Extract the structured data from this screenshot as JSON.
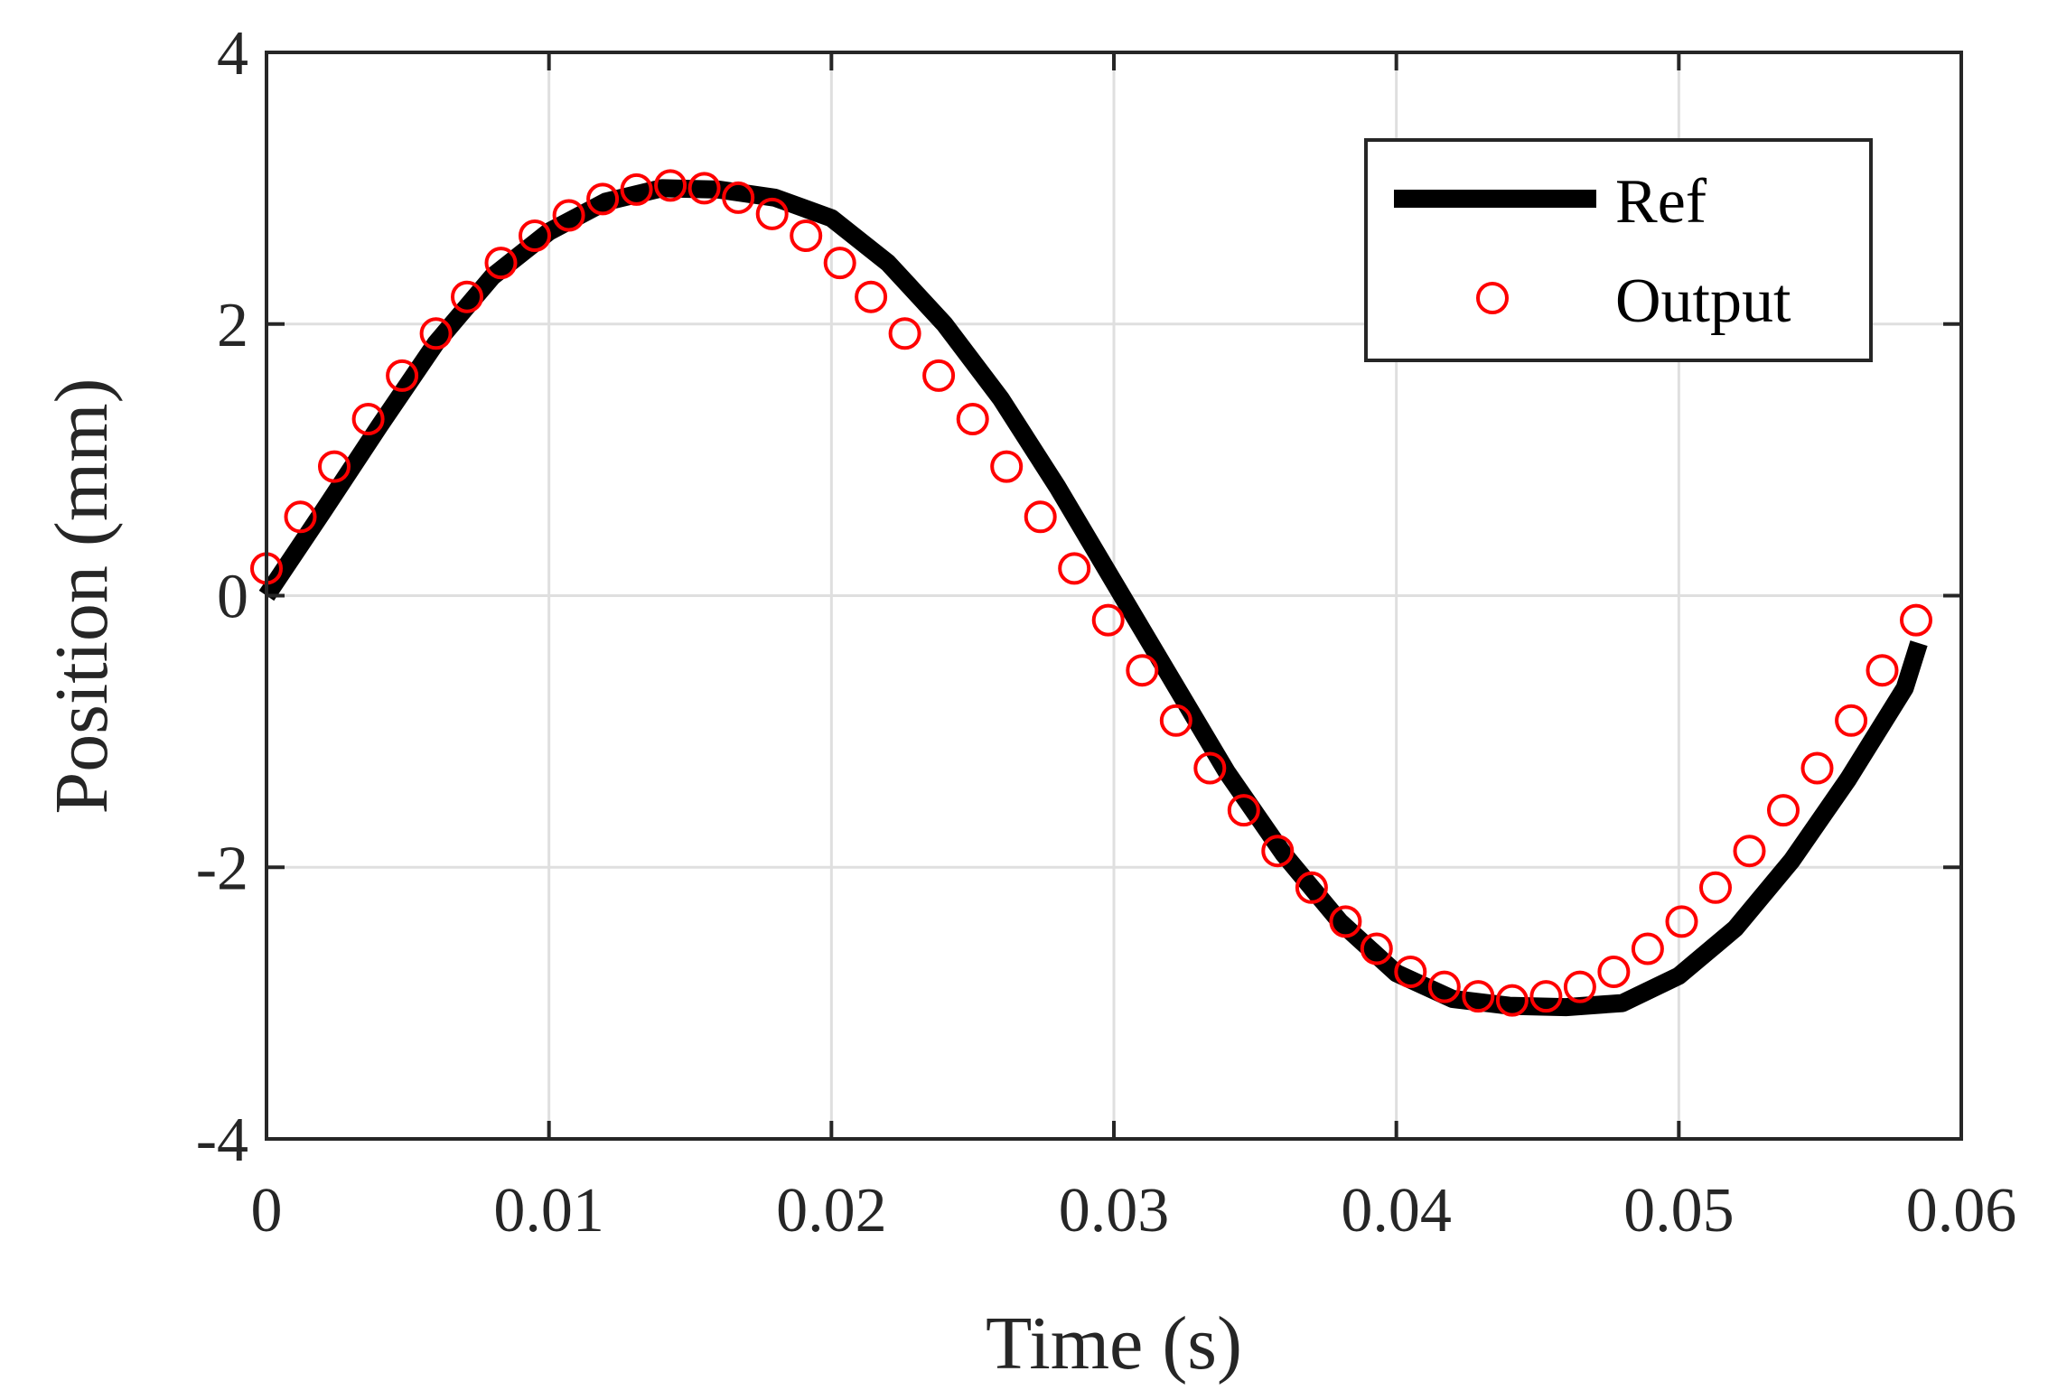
{
  "chart_data": {
    "type": "line",
    "title": "",
    "xlabel": "Time (s)",
    "ylabel": "Position (mm)",
    "xlim": [
      0,
      0.06
    ],
    "ylim": [
      -4,
      4
    ],
    "grid": true,
    "legend_position": "top-right",
    "xticks": [
      0,
      0.01,
      0.02,
      0.03,
      0.04,
      0.05,
      0.06
    ],
    "xtick_labels": [
      "0",
      "0.01",
      "0.02",
      "0.03",
      "0.04",
      "0.05",
      "0.06"
    ],
    "yticks": [
      4,
      2,
      0,
      -2,
      -4
    ],
    "ytick_labels": [
      "4",
      "2",
      "0",
      "-2",
      "-4"
    ],
    "series": [
      {
        "name": "Ref",
        "style": "line",
        "color": "#000000",
        "x": [
          0,
          0.002,
          0.004,
          0.006,
          0.008,
          0.01,
          0.012,
          0.014,
          0.016,
          0.018,
          0.02,
          0.022,
          0.024,
          0.026,
          0.028,
          0.03,
          0.032,
          0.034,
          0.036,
          0.038,
          0.04,
          0.042,
          0.044,
          0.046,
          0.048,
          0.05,
          0.052,
          0.054,
          0.056,
          0.058,
          0.0585
        ],
        "y": [
          0.0,
          0.62,
          1.25,
          1.86,
          2.35,
          2.68,
          2.9,
          3.0,
          2.99,
          2.93,
          2.78,
          2.45,
          2.0,
          1.45,
          0.8,
          0.1,
          -0.6,
          -1.3,
          -1.9,
          -2.4,
          -2.78,
          -2.97,
          -3.02,
          -3.03,
          -3.0,
          -2.8,
          -2.45,
          -1.95,
          -1.35,
          -0.68,
          -0.35
        ]
      },
      {
        "name": "Output",
        "style": "markers",
        "marker": "circle",
        "color": "#ff0000",
        "x": [
          0.0,
          0.0012,
          0.0024,
          0.0036,
          0.0048,
          0.006,
          0.0071,
          0.0083,
          0.0095,
          0.0107,
          0.0119,
          0.0131,
          0.0143,
          0.0155,
          0.0167,
          0.0179,
          0.0191,
          0.0203,
          0.0214,
          0.0226,
          0.0238,
          0.025,
          0.0262,
          0.0274,
          0.0286,
          0.0298,
          0.031,
          0.0322,
          0.0334,
          0.0346,
          0.0358,
          0.037,
          0.0382,
          0.0393,
          0.0405,
          0.0417,
          0.0429,
          0.0441,
          0.0453,
          0.0465,
          0.0477,
          0.0489,
          0.0501,
          0.0513,
          0.0525,
          0.0537,
          0.0549,
          0.0561,
          0.0572,
          0.0584
        ],
        "y": [
          0.2,
          0.58,
          0.95,
          1.3,
          1.62,
          1.93,
          2.2,
          2.45,
          2.65,
          2.8,
          2.92,
          2.99,
          3.02,
          3.0,
          2.93,
          2.81,
          2.65,
          2.45,
          2.2,
          1.93,
          1.62,
          1.3,
          0.95,
          0.58,
          0.2,
          -0.18,
          -0.55,
          -0.92,
          -1.27,
          -1.58,
          -1.88,
          -2.15,
          -2.4,
          -2.6,
          -2.77,
          -2.88,
          -2.95,
          -2.98,
          -2.95,
          -2.88,
          -2.77,
          -2.6,
          -2.4,
          -2.15,
          -1.88,
          -1.58,
          -1.27,
          -0.92,
          -0.55,
          -0.18
        ]
      }
    ],
    "legend": [
      {
        "label": "Ref",
        "style": "line",
        "color": "#000000"
      },
      {
        "label": "Output",
        "style": "marker",
        "color": "#ff0000"
      }
    ]
  }
}
